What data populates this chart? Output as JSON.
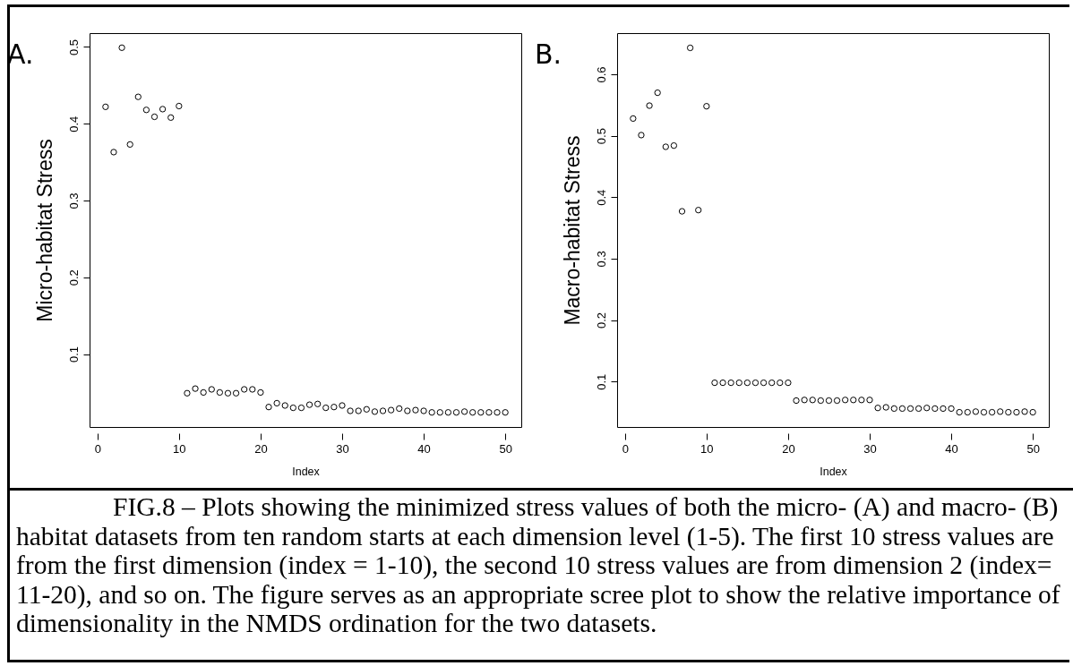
{
  "chart_data": [
    {
      "type": "scatter",
      "title": "A.",
      "ylabel": "Micro-habitat Stress",
      "xlabel": "Index",
      "marker": "circle",
      "x": [
        1,
        2,
        3,
        4,
        5,
        6,
        7,
        8,
        9,
        10,
        11,
        12,
        13,
        14,
        15,
        16,
        17,
        18,
        19,
        20,
        21,
        22,
        23,
        24,
        25,
        26,
        27,
        28,
        29,
        30,
        31,
        32,
        33,
        34,
        35,
        36,
        37,
        38,
        39,
        40,
        41,
        42,
        43,
        44,
        45,
        46,
        47,
        48,
        49,
        50
      ],
      "series": [
        {
          "color": "#000000",
          "values": [
            0.422,
            0.363,
            0.499,
            0.373,
            0.435,
            0.418,
            0.409,
            0.419,
            0.408,
            0.423,
            0.049,
            0.055,
            0.05,
            0.054,
            0.05,
            0.049,
            0.049,
            0.054,
            0.054,
            0.05,
            0.031,
            0.036,
            0.033,
            0.03,
            0.03,
            0.034,
            0.035,
            0.03,
            0.031,
            0.033,
            0.026,
            0.026,
            0.028,
            0.025,
            0.026,
            0.027,
            0.029,
            0.026,
            0.027,
            0.026,
            0.024,
            0.024,
            0.024,
            0.024,
            0.025,
            0.024,
            0.024,
            0.024,
            0.024,
            0.024
          ]
        }
      ],
      "xlim": [
        -0.96,
        51.96
      ],
      "xticks": [
        0,
        10,
        20,
        30,
        40,
        50
      ],
      "ylim": [
        0.005,
        0.518
      ],
      "yticks": [
        0.1,
        0.2,
        0.3,
        0.4,
        0.5
      ],
      "annotations": [
        "FIG.8 – Plots showing the minimized stress values of both the micro- (A) and macro- (B) habitat datasets from ten random starts at each dimension level (1-5). The first 10 stress values are from the first dimension (index = 1-10), the second 10 stress values are from dimension 2 (index= 11-20), and so on. The figure serves as an appropriate scree plot to show the relative importance of dimensionality in the NMDS ordination for the two datasets."
      ]
    },
    {
      "type": "scatter",
      "title": "B.",
      "ylabel": "Macro-habitat Stress",
      "xlabel": "Index",
      "marker": "circle",
      "x": [
        1,
        2,
        3,
        4,
        5,
        6,
        7,
        8,
        9,
        10,
        11,
        12,
        13,
        14,
        15,
        16,
        17,
        18,
        19,
        20,
        21,
        22,
        23,
        24,
        25,
        26,
        27,
        28,
        29,
        30,
        31,
        32,
        33,
        34,
        35,
        36,
        37,
        38,
        39,
        40,
        41,
        42,
        43,
        44,
        45,
        46,
        47,
        48,
        49,
        50
      ],
      "series": [
        {
          "color": "#000000",
          "values": [
            0.528,
            0.501,
            0.549,
            0.57,
            0.482,
            0.484,
            0.377,
            0.643,
            0.379,
            0.548,
            0.098,
            0.098,
            0.098,
            0.098,
            0.098,
            0.098,
            0.098,
            0.098,
            0.098,
            0.098,
            0.069,
            0.07,
            0.07,
            0.069,
            0.069,
            0.069,
            0.07,
            0.07,
            0.07,
            0.07,
            0.057,
            0.058,
            0.056,
            0.056,
            0.056,
            0.056,
            0.057,
            0.056,
            0.056,
            0.056,
            0.05,
            0.05,
            0.051,
            0.05,
            0.05,
            0.051,
            0.05,
            0.05,
            0.051,
            0.05
          ]
        }
      ],
      "xlim": [
        -0.96,
        51.96
      ],
      "xticks": [
        0,
        10,
        20,
        30,
        40,
        50
      ],
      "ylim": [
        0.026,
        0.667
      ],
      "yticks": [
        0.1,
        0.2,
        0.3,
        0.4,
        0.5,
        0.6
      ]
    }
  ]
}
